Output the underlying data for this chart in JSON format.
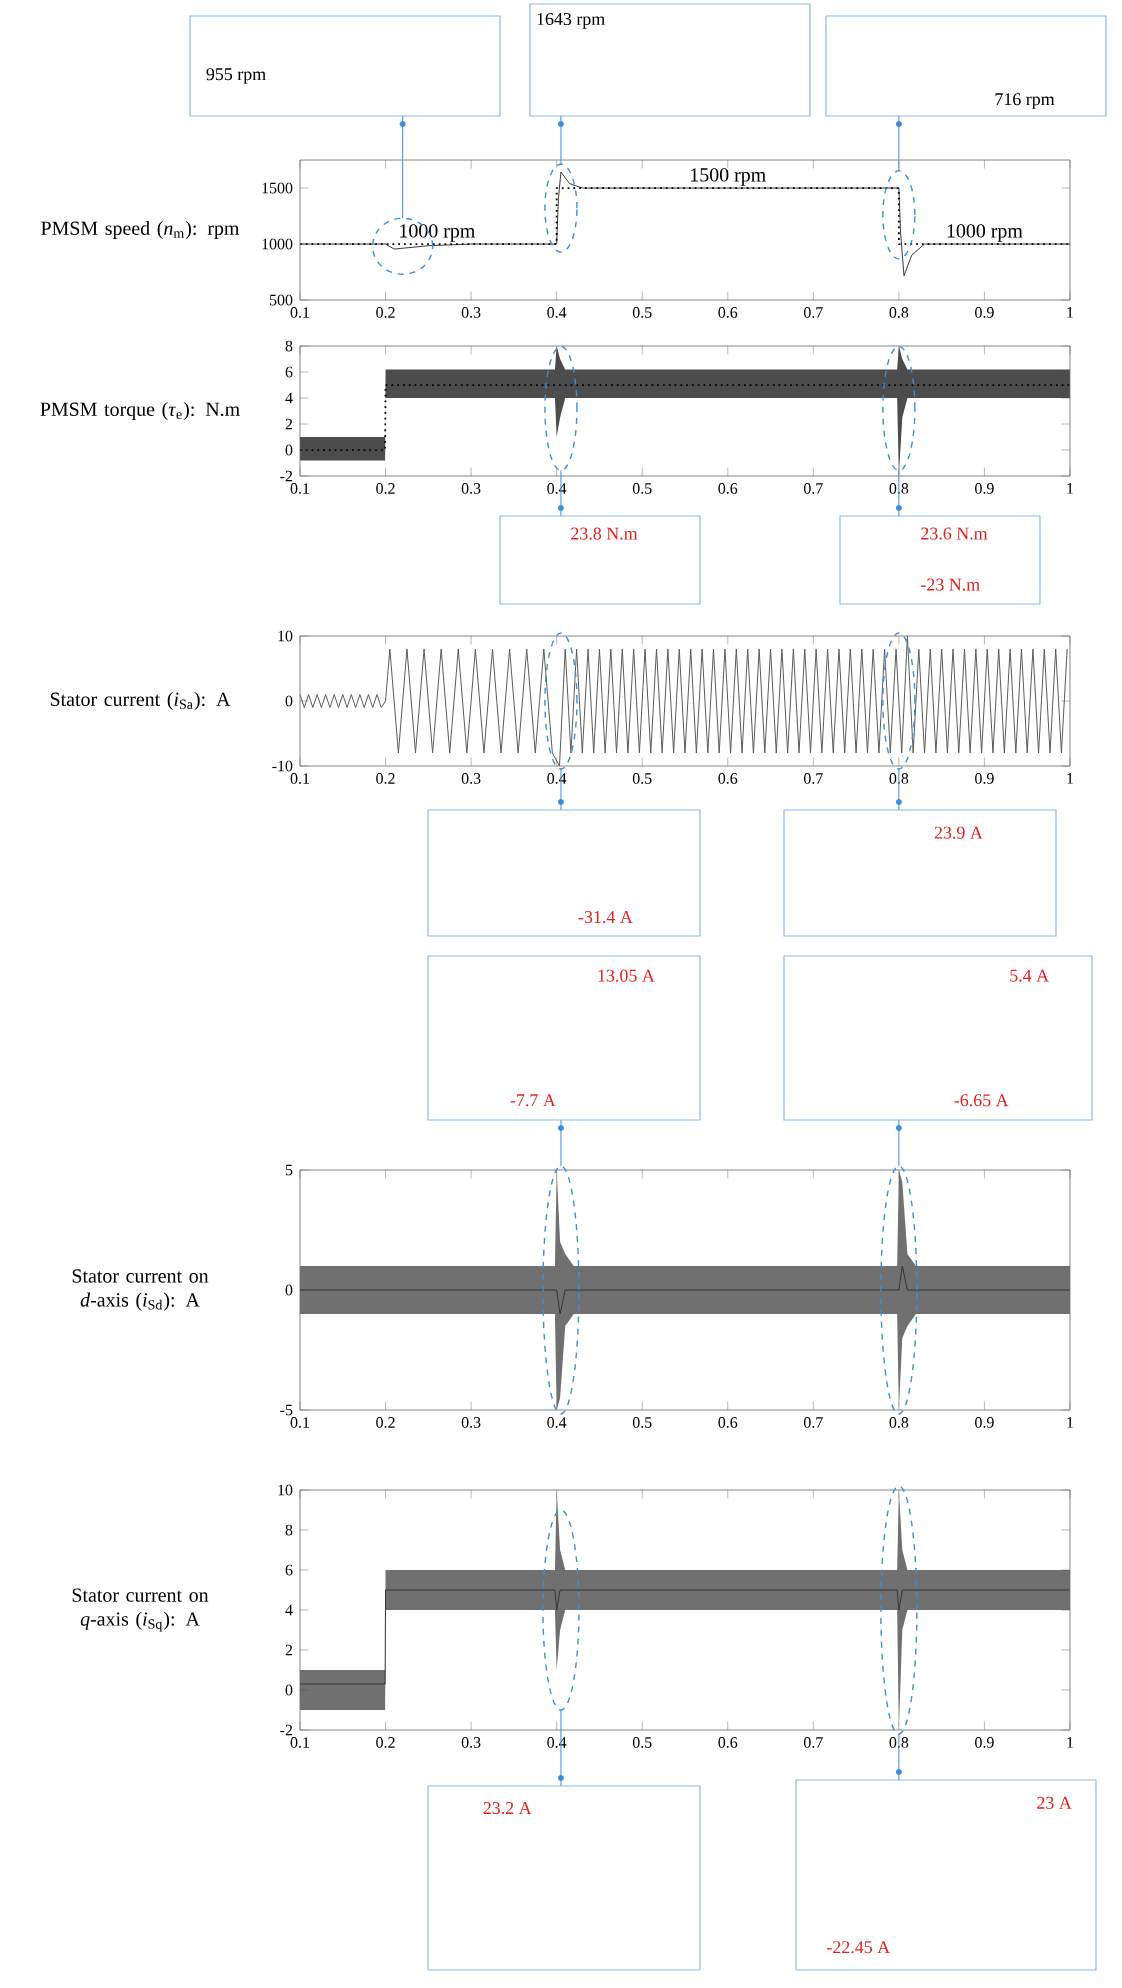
{
  "chart_data": [
    {
      "type": "line",
      "ylabel": "PMSM speed (*n*$_{m}$): rpm",
      "xlim": [
        0.1,
        1
      ],
      "xticks": [
        0.1,
        0.2,
        0.3,
        0.4,
        0.5,
        0.6,
        0.7,
        0.8,
        0.9,
        1
      ],
      "ylim": [
        500,
        1750
      ],
      "yticks": [
        500,
        1000,
        1500
      ],
      "series": [
        {
          "color": "#3a3a3a",
          "x": [
            0.1,
            0.2,
            0.21,
            0.25,
            0.3,
            0.4,
            0.402,
            0.405,
            0.415,
            0.43,
            0.8,
            0.802,
            0.806,
            0.815,
            0.83,
            1
          ],
          "values": [
            1000,
            1000,
            955,
            985,
            1000,
            1000,
            1400,
            1643,
            1540,
            1500,
            1500,
            1100,
            716,
            900,
            1000,
            1000
          ]
        },
        {
          "color": "#000000",
          "line_style": "dotted",
          "x": [
            0.1,
            0.4,
            0.4,
            0.8,
            0.8,
            1
          ],
          "values": [
            1000,
            1000,
            1500,
            1500,
            1000,
            1000
          ]
        }
      ],
      "annotations": [
        {
          "text": "1000 rpm",
          "x": 0.26,
          "y": 1000
        },
        {
          "text": "1500 rpm",
          "x": 0.6,
          "y": 1500
        },
        {
          "text": "1000 rpm",
          "x": 0.9,
          "y": 1000
        },
        "955 rpm",
        "1643 rpm",
        "716 rpm"
      ]
    },
    {
      "type": "line",
      "ylabel": "PMSM torque (*τ*$_{e}$): N.m",
      "xlim": [
        0.1,
        1
      ],
      "xticks": [
        0.1,
        0.2,
        0.3,
        0.4,
        0.5,
        0.6,
        0.7,
        0.8,
        0.9,
        1
      ],
      "ylim": [
        -2,
        8
      ],
      "yticks": [
        -2,
        0,
        2,
        4,
        6,
        8
      ],
      "series": [
        {
          "color": "#000000",
          "line_style": "dotted",
          "x": [
            0.1,
            0.1995,
            0.2,
            0.398,
            0.4,
            0.404,
            0.41,
            0.798,
            0.8,
            0.804,
            0.81,
            1
          ],
          "values": [
            0,
            0,
            5,
            5,
            5,
            5,
            5,
            5,
            5,
            5,
            5,
            5
          ],
          "lower": [
            -0.8,
            -0.8,
            4,
            4,
            1,
            2.5,
            4,
            4,
            -2,
            2.5,
            4,
            4
          ],
          "upper": [
            1,
            1,
            6.2,
            6.2,
            8,
            7,
            6.2,
            6.2,
            8,
            7,
            6.2,
            6.2
          ]
        }
      ],
      "annotations": [
        "23.8 N.m",
        "23.6 N.m",
        "-23 N.m"
      ]
    },
    {
      "type": "line",
      "ylabel": "Stator current (*i*$_{Sa}$): A",
      "xlim": [
        0.1,
        1
      ],
      "xticks": [
        0.1,
        0.2,
        0.3,
        0.4,
        0.5,
        0.6,
        0.7,
        0.8,
        0.9,
        1
      ],
      "ylim": [
        -10,
        10
      ],
      "yticks": [
        -10,
        0,
        10
      ],
      "series": [
        {
          "color": "#5a5a5a",
          "x": [
            0.1,
            0.105,
            0.11,
            0.115,
            0.12,
            0.125,
            0.13,
            0.135,
            0.14,
            0.145,
            0.15,
            0.155,
            0.16,
            0.165,
            0.17,
            0.175,
            0.18,
            0.185,
            0.19,
            0.195,
            0.2,
            0.205,
            0.215,
            0.225,
            0.235,
            0.245,
            0.255,
            0.265,
            0.275,
            0.285,
            0.295,
            0.305,
            0.315,
            0.325,
            0.335,
            0.345,
            0.355,
            0.365,
            0.375,
            0.385,
            0.395,
            0.4033,
            0.41,
            0.4167,
            0.4233,
            0.43,
            0.4367,
            0.4433,
            0.45,
            0.4567,
            0.4633,
            0.47,
            0.4767,
            0.4833,
            0.49,
            0.4967,
            0.5033,
            0.51,
            0.5167,
            0.5233,
            0.53,
            0.5367,
            0.5433,
            0.55,
            0.5567,
            0.5633,
            0.57,
            0.5767,
            0.5833,
            0.59,
            0.5967,
            0.6033,
            0.61,
            0.6167,
            0.6233,
            0.63,
            0.6367,
            0.6433,
            0.65,
            0.6567,
            0.6633,
            0.67,
            0.6767,
            0.6833,
            0.69,
            0.6967,
            0.7033,
            0.71,
            0.7167,
            0.7233,
            0.73,
            0.7367,
            0.7433,
            0.75,
            0.7567,
            0.7633,
            0.77,
            0.7767,
            0.7833,
            0.79,
            0.7967,
            0.8033,
            0.81,
            0.8167,
            0.8233,
            0.83,
            0.8367,
            0.8433,
            0.85,
            0.8567,
            0.8633,
            0.87,
            0.8767,
            0.8833,
            0.89,
            0.8967,
            0.9033,
            0.91,
            0.9167,
            0.9233,
            0.93,
            0.9367,
            0.9433,
            0.95,
            0.9567,
            0.9633,
            0.97,
            0.9767,
            0.9833,
            0.99,
            0.9967
          ],
          "values": [
            1,
            -1,
            1,
            -1,
            1,
            -1,
            1,
            -1,
            1,
            -1,
            1,
            -1,
            1,
            -1,
            1,
            -1,
            1,
            -1,
            1,
            -1,
            0,
            8,
            -8,
            8,
            -8,
            8,
            -8,
            8,
            -8,
            8,
            -8,
            8,
            -8,
            8,
            -8,
            8,
            -8,
            8,
            -8,
            8,
            -8,
            -10,
            8,
            -8,
            8,
            -8,
            8,
            -8,
            8,
            -8,
            8,
            -8,
            8,
            -8,
            8,
            -8,
            8,
            -8,
            8,
            -8,
            8,
            -8,
            8,
            -8,
            8,
            -8,
            8,
            -8,
            8,
            -8,
            8,
            -8,
            8,
            -8,
            8,
            -8,
            8,
            -8,
            8,
            -8,
            8,
            -8,
            8,
            -8,
            8,
            -8,
            8,
            -8,
            8,
            -8,
            8,
            -8,
            8,
            -8,
            8,
            -8,
            8,
            -8,
            8,
            -8,
            8,
            -8,
            10,
            -8,
            8,
            -8,
            8,
            -8,
            8,
            -8,
            8,
            -8,
            8,
            -8,
            8,
            -8,
            8,
            -8,
            8,
            -8,
            8,
            -8,
            8,
            -8,
            8,
            -8,
            8,
            -8,
            8,
            -8,
            8
          ]
        }
      ],
      "annotations": [
        "-31.4 A",
        "23.9 A"
      ]
    },
    {
      "type": "line",
      "ylabel": "Stator current on *d*-axis (*i*$_{Sd}$): A",
      "xlim": [
        0.1,
        1
      ],
      "xticks": [
        0.1,
        0.2,
        0.3,
        0.4,
        0.5,
        0.6,
        0.7,
        0.8,
        0.9,
        1
      ],
      "ylim": [
        -5,
        5
      ],
      "yticks": [
        -5,
        0,
        5
      ],
      "series": [
        {
          "color": "#333333",
          "x": [
            0.1,
            0.398,
            0.4,
            0.404,
            0.41,
            0.42,
            0.798,
            0.8,
            0.804,
            0.81,
            0.82,
            1
          ],
          "values": [
            0,
            0,
            0,
            -1,
            0,
            0,
            0,
            0,
            1,
            0,
            0,
            0
          ],
          "lower": [
            -1,
            -1,
            -5,
            -4.5,
            -1.5,
            -1,
            -1,
            -5,
            -2,
            -1.5,
            -1,
            -1
          ],
          "upper": [
            1,
            1,
            5,
            2,
            1.5,
            1,
            1,
            5,
            4.5,
            1.5,
            1,
            1
          ]
        }
      ],
      "annotations": [
        "13.05 A",
        "-7.7 A",
        "5.4 A",
        "-6.65 A"
      ]
    },
    {
      "type": "line",
      "ylabel": "Stator current on *q*-axis (*i*$_{Sq}$): A",
      "xlim": [
        0.1,
        1
      ],
      "xticks": [
        0.1,
        0.2,
        0.3,
        0.4,
        0.5,
        0.6,
        0.7,
        0.8,
        0.9,
        1
      ],
      "ylim": [
        -2,
        10
      ],
      "yticks": [
        -2,
        0,
        2,
        4,
        6,
        8,
        10
      ],
      "series": [
        {
          "color": "#333333",
          "x": [
            0.1,
            0.1995,
            0.2,
            0.398,
            0.4,
            0.404,
            0.41,
            0.798,
            0.8,
            0.804,
            0.81,
            1
          ],
          "values": [
            0.3,
            0.3,
            5,
            5,
            4,
            5,
            5,
            5,
            4,
            5,
            5,
            5
          ],
          "lower": [
            -1,
            -1,
            4,
            4,
            1,
            3,
            4,
            4,
            -2,
            3,
            4,
            4
          ],
          "upper": [
            1,
            1,
            6,
            6,
            10,
            7,
            6,
            6,
            10,
            7,
            6,
            6
          ]
        }
      ],
      "annotations": [
        "23.2 A",
        "23 A",
        "-22.45 A"
      ]
    }
  ]
}
